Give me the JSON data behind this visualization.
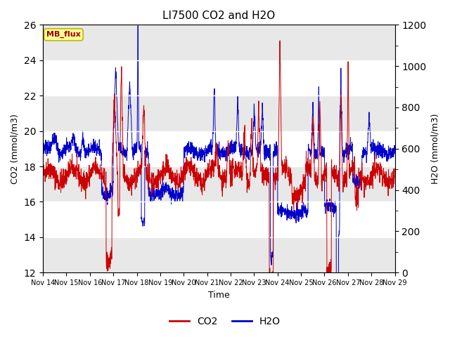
{
  "title": "LI7500 CO2 and H2O",
  "xlabel": "Time",
  "ylabel_left": "CO2 (mmol/m3)",
  "ylabel_right": "H2O (mmol/m3)",
  "co2_color": "#CC0000",
  "h2o_color": "#0000CC",
  "ylim_left": [
    12,
    26
  ],
  "ylim_right": [
    0,
    1200
  ],
  "yticks_left": [
    12,
    14,
    16,
    18,
    20,
    22,
    24,
    26
  ],
  "yticks_right": [
    0,
    200,
    400,
    600,
    800,
    1000,
    1200
  ],
  "xtick_labels": [
    "Nov 14",
    "Nov 15",
    "Nov 16",
    "Nov 17",
    "Nov 18",
    "Nov 19",
    "Nov 20",
    "Nov 21",
    "Nov 22",
    "Nov 23",
    "Nov 24",
    "Nov 25",
    "Nov 26",
    "Nov 27",
    "Nov 28",
    "Nov 29"
  ],
  "bg_color": "#FFFFFF",
  "plot_bg_color": "#FFFFFF",
  "gray_band_color": "#E8E8E8",
  "annotation_text": "MB_flux",
  "annotation_bg": "#FFFF99",
  "annotation_fg": "#990000",
  "legend_co2": "CO2",
  "legend_h2o": "H2O",
  "n_days": 15,
  "pts_per_day": 144,
  "seed": 42
}
